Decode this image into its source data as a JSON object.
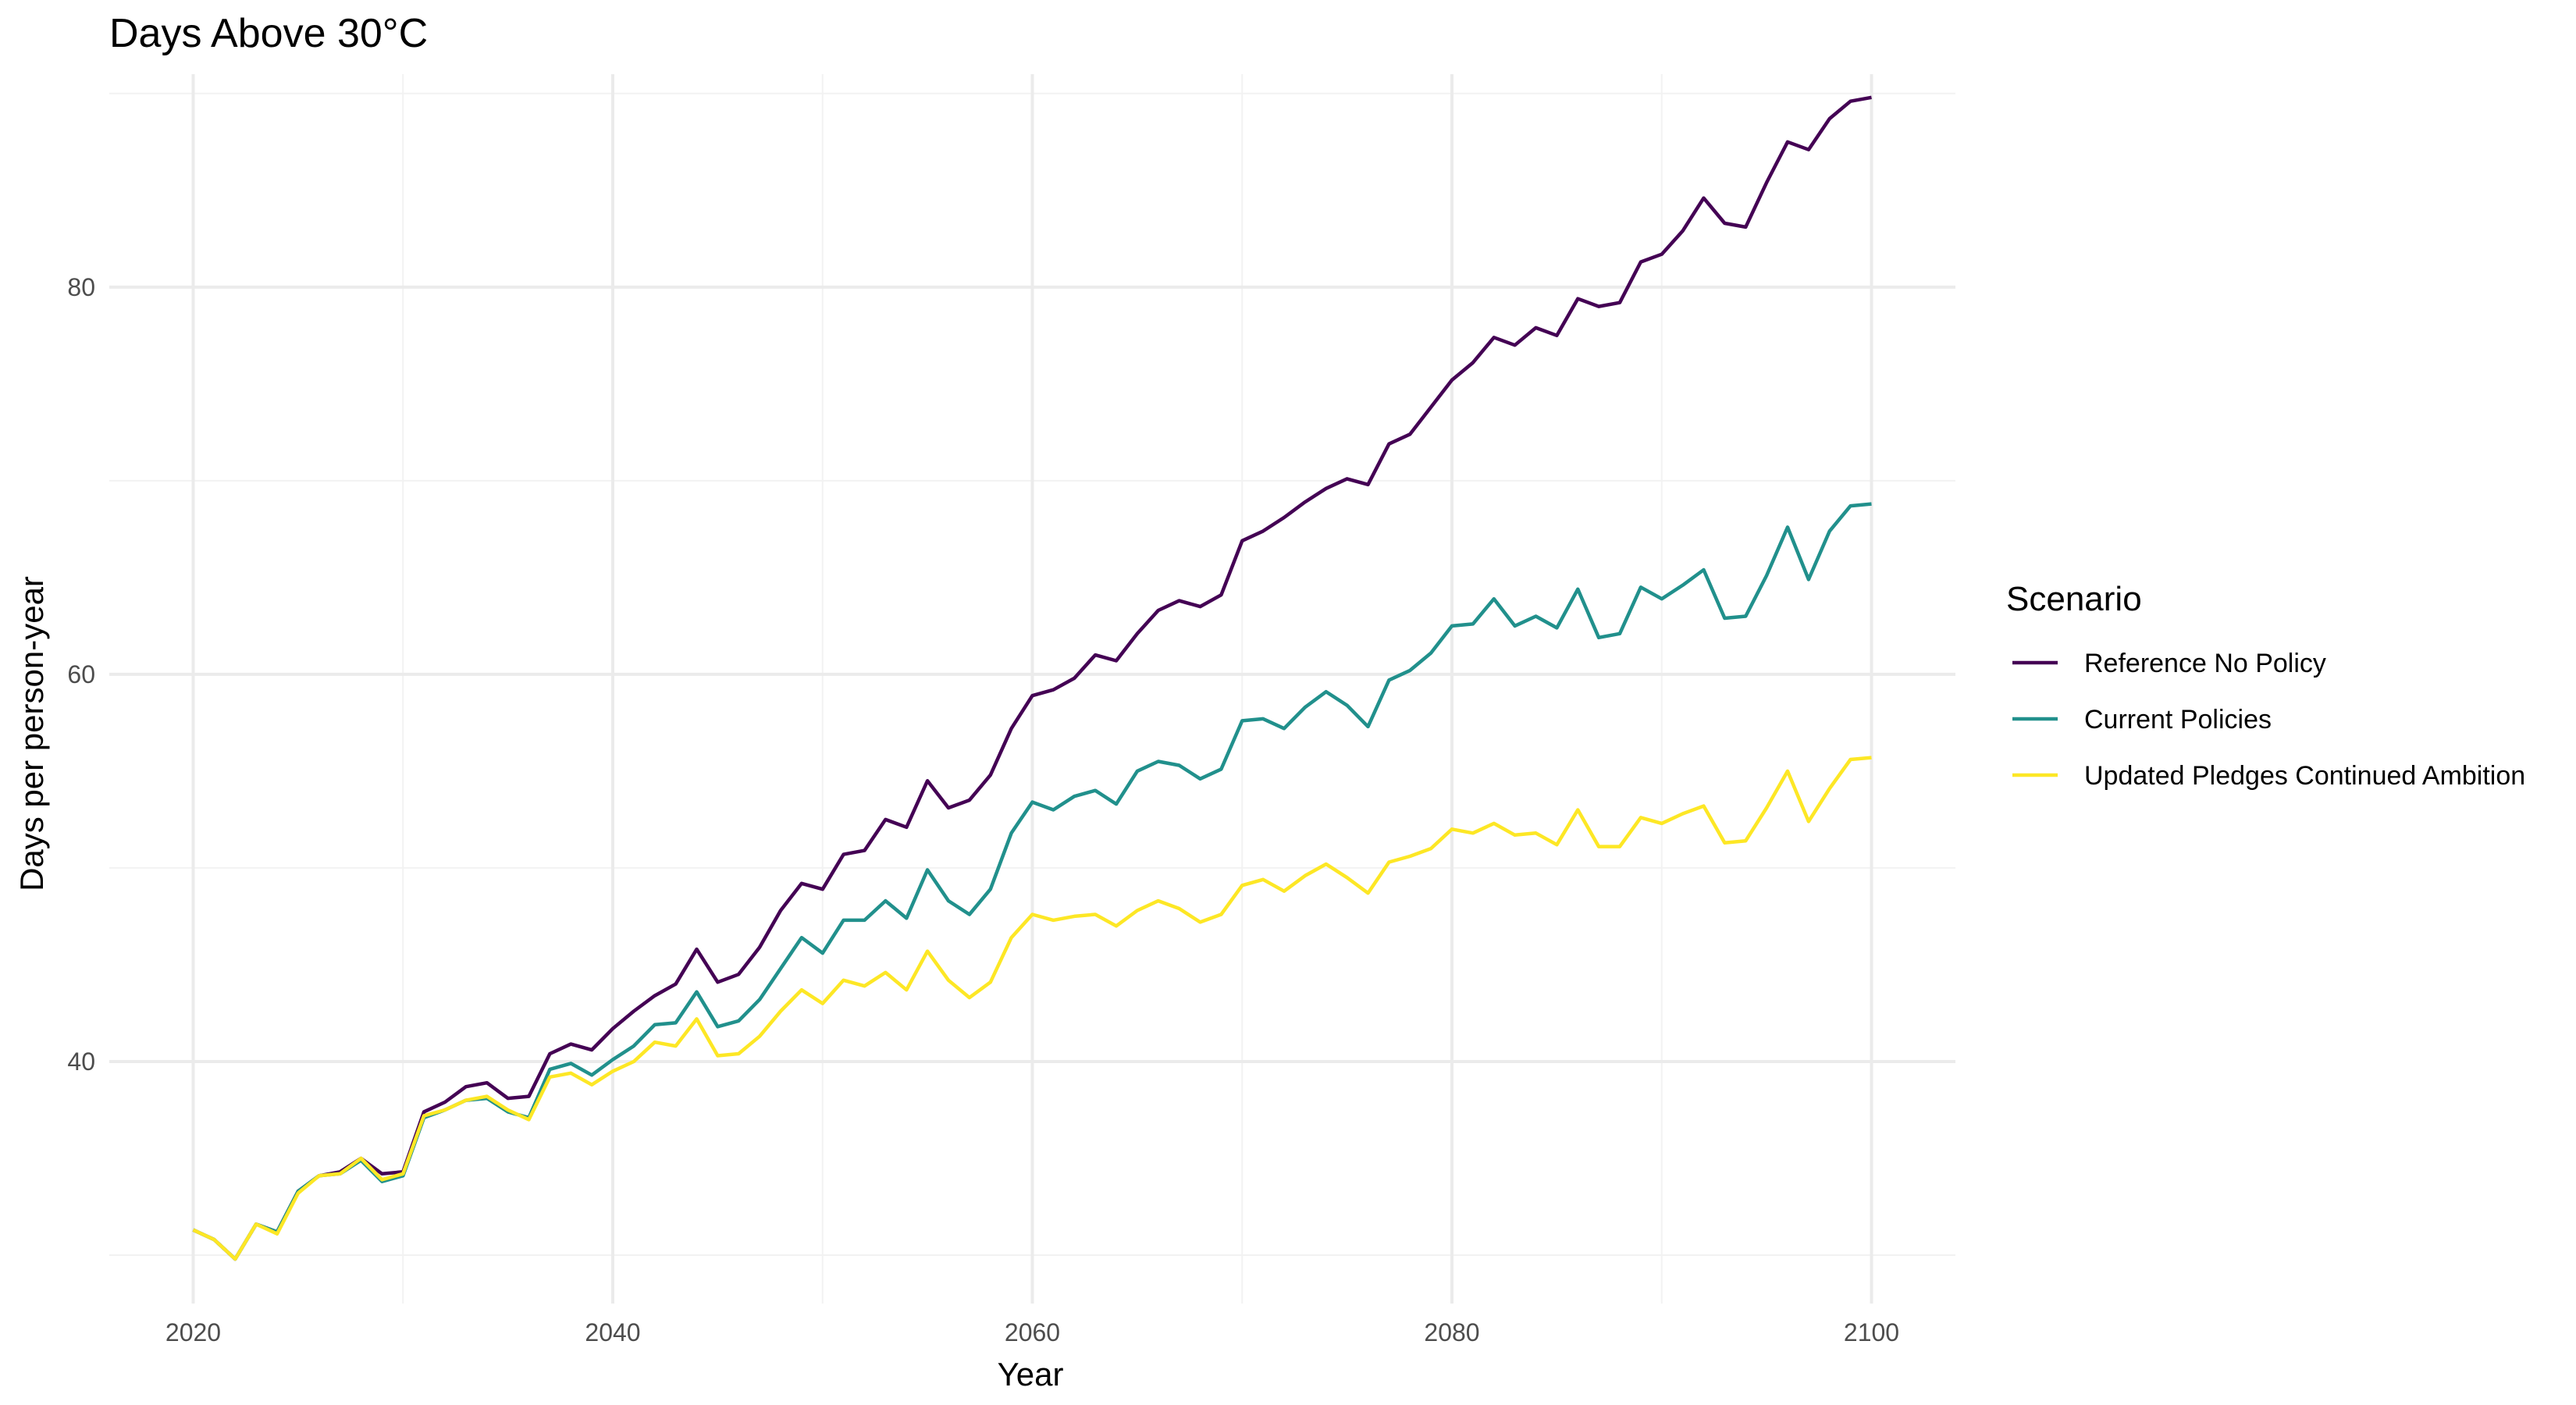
{
  "chart_data": {
    "type": "line",
    "title": "Days Above 30°C",
    "xlabel": "Year",
    "ylabel": "Days per person-year",
    "xlim": [
      2016,
      2104
    ],
    "ylim": [
      27.5,
      91
    ],
    "x_ticks": [
      2020,
      2040,
      2060,
      2080,
      2100
    ],
    "y_ticks": [
      40,
      60,
      80
    ],
    "grid": true,
    "legend": {
      "title": "Scenario",
      "placement": "right"
    },
    "x": [
      2020,
      2021,
      2022,
      2023,
      2024,
      2025,
      2026,
      2027,
      2028,
      2029,
      2030,
      2031,
      2032,
      2033,
      2034,
      2035,
      2036,
      2037,
      2038,
      2039,
      2040,
      2041,
      2042,
      2043,
      2044,
      2045,
      2046,
      2047,
      2048,
      2049,
      2050,
      2051,
      2052,
      2053,
      2054,
      2055,
      2056,
      2057,
      2058,
      2059,
      2060,
      2061,
      2062,
      2063,
      2064,
      2065,
      2066,
      2067,
      2068,
      2069,
      2070,
      2071,
      2072,
      2073,
      2074,
      2075,
      2076,
      2077,
      2078,
      2079,
      2080,
      2081,
      2082,
      2083,
      2084,
      2085,
      2086,
      2087,
      2088,
      2089,
      2090,
      2091,
      2092,
      2093,
      2094,
      2095,
      2096,
      2097,
      2098,
      2099,
      2100
    ],
    "series": [
      {
        "name": "Reference No Policy",
        "color": "#440154",
        "values": [
          31.3,
          30.8,
          29.8,
          31.6,
          31.2,
          33.3,
          34.1,
          34.3,
          35.0,
          34.2,
          34.3,
          37.4,
          37.9,
          38.7,
          38.9,
          38.1,
          38.2,
          40.4,
          40.9,
          40.6,
          41.7,
          42.6,
          43.4,
          44.0,
          45.8,
          44.1,
          44.5,
          45.9,
          47.8,
          49.2,
          48.9,
          50.7,
          50.9,
          52.5,
          52.1,
          54.5,
          53.1,
          53.5,
          54.8,
          57.2,
          58.9,
          59.2,
          59.8,
          61.0,
          60.7,
          62.1,
          63.3,
          63.8,
          63.5,
          64.1,
          66.9,
          67.4,
          68.1,
          68.9,
          69.6,
          70.1,
          69.8,
          71.9,
          72.4,
          73.8,
          75.2,
          76.1,
          77.4,
          77.0,
          77.9,
          77.5,
          79.4,
          79.0,
          79.2,
          81.3,
          81.7,
          82.9,
          84.6,
          83.3,
          83.1,
          85.4,
          87.5,
          87.1,
          88.7,
          89.6,
          89.8
        ]
      },
      {
        "name": "Current Policies",
        "color": "#21908C",
        "values": [
          31.3,
          30.8,
          29.8,
          31.6,
          31.2,
          33.3,
          34.1,
          34.2,
          34.9,
          33.8,
          34.1,
          37.1,
          37.5,
          38.0,
          38.1,
          37.4,
          37.1,
          39.6,
          39.9,
          39.3,
          40.1,
          40.8,
          41.9,
          42.0,
          43.6,
          41.8,
          42.1,
          43.2,
          44.8,
          46.4,
          45.6,
          47.3,
          47.3,
          48.3,
          47.4,
          49.9,
          48.3,
          47.6,
          48.9,
          51.8,
          53.4,
          53.0,
          53.7,
          54.0,
          53.3,
          55.0,
          55.5,
          55.3,
          54.6,
          55.1,
          57.6,
          57.7,
          57.2,
          58.3,
          59.1,
          58.4,
          57.3,
          59.7,
          60.2,
          61.1,
          62.5,
          62.6,
          63.9,
          62.5,
          63.0,
          62.4,
          64.4,
          61.9,
          62.1,
          64.5,
          63.9,
          64.6,
          65.4,
          62.9,
          63.0,
          65.1,
          67.6,
          64.9,
          67.4,
          68.7,
          68.8
        ]
      },
      {
        "name": "Updated Pledges Continued Ambition",
        "color": "#FDE725",
        "values": [
          31.3,
          30.8,
          29.8,
          31.6,
          31.1,
          33.2,
          34.1,
          34.2,
          35.0,
          33.9,
          34.2,
          37.2,
          37.5,
          38.0,
          38.2,
          37.5,
          37.0,
          39.2,
          39.4,
          38.8,
          39.5,
          40.0,
          41.0,
          40.8,
          42.2,
          40.3,
          40.4,
          41.3,
          42.6,
          43.7,
          43.0,
          44.2,
          43.9,
          44.6,
          43.7,
          45.7,
          44.2,
          43.3,
          44.1,
          46.4,
          47.6,
          47.3,
          47.5,
          47.6,
          47.0,
          47.8,
          48.3,
          47.9,
          47.2,
          47.6,
          49.1,
          49.4,
          48.8,
          49.6,
          50.2,
          49.5,
          48.7,
          50.3,
          50.6,
          51.0,
          52.0,
          51.8,
          52.3,
          51.7,
          51.8,
          51.2,
          53.0,
          51.1,
          51.1,
          52.6,
          52.3,
          52.8,
          53.2,
          51.3,
          51.4,
          53.1,
          55.0,
          52.4,
          54.1,
          55.6,
          55.7
        ]
      }
    ]
  }
}
